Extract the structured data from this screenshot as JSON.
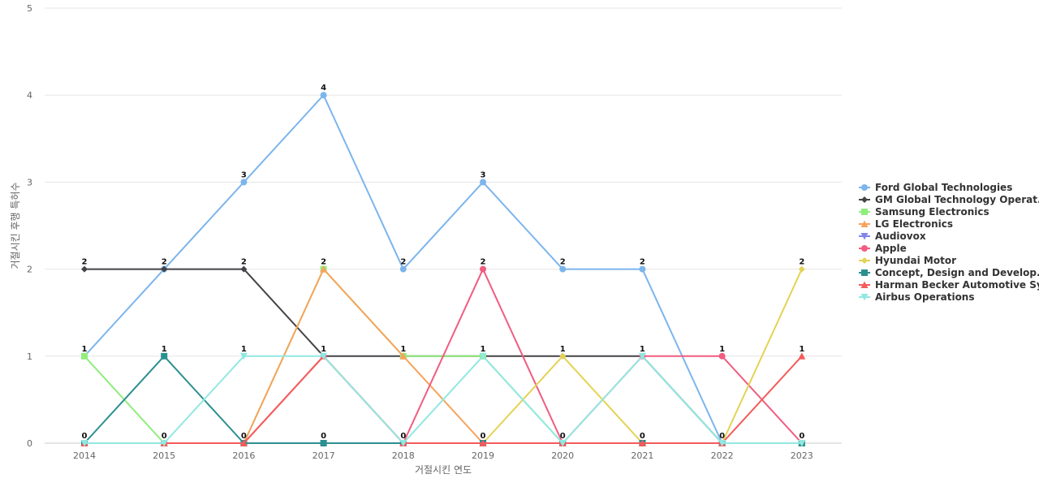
{
  "chart_data": {
    "type": "line",
    "title": "",
    "xlabel": "거절시킨 연도",
    "ylabel": "거절시킨 후행 특허수",
    "categories": [
      "2014",
      "2015",
      "2016",
      "2017",
      "2018",
      "2019",
      "2020",
      "2021",
      "2022",
      "2023"
    ],
    "ylim": [
      0,
      5
    ],
    "yticks": [
      0,
      1,
      2,
      3,
      4,
      5
    ],
    "grid": true,
    "legend_position": "right",
    "series": [
      {
        "name": "Ford Global Technologies",
        "color": "#7cb5ec",
        "marker": "circle",
        "values": [
          1,
          2,
          3,
          4,
          2,
          3,
          2,
          2,
          0,
          0
        ]
      },
      {
        "name": "GM Global Technology Operat...",
        "color": "#434348",
        "marker": "diamond",
        "values": [
          2,
          2,
          2,
          1,
          1,
          1,
          1,
          1,
          0,
          0
        ]
      },
      {
        "name": "Samsung Electronics",
        "color": "#90ed7d",
        "marker": "square",
        "values": [
          1,
          0,
          0,
          2,
          1,
          1,
          0,
          0,
          0,
          0
        ]
      },
      {
        "name": "LG Electronics",
        "color": "#f7a35c",
        "marker": "triangle",
        "values": [
          0,
          0,
          0,
          2,
          1,
          0,
          0,
          0,
          0,
          0
        ]
      },
      {
        "name": "Audiovox",
        "color": "#8085e9",
        "marker": "triangle-down",
        "values": [
          0,
          0,
          0,
          0,
          0,
          0,
          0,
          0,
          0,
          0
        ]
      },
      {
        "name": "Apple",
        "color": "#f15c80",
        "marker": "circle",
        "values": [
          0,
          0,
          0,
          1,
          0,
          2,
          0,
          1,
          1,
          0
        ]
      },
      {
        "name": "Hyundai Motor",
        "color": "#e4d354",
        "marker": "diamond",
        "values": [
          0,
          0,
          0,
          0,
          0,
          0,
          1,
          0,
          0,
          2
        ]
      },
      {
        "name": "Concept, Design and Develop...",
        "color": "#2b908f",
        "marker": "square",
        "values": [
          0,
          1,
          0,
          0,
          0,
          0,
          0,
          0,
          0,
          0
        ]
      },
      {
        "name": "Harman Becker Automotive Sy...",
        "color": "#f45b5b",
        "marker": "triangle",
        "values": [
          0,
          0,
          0,
          1,
          0,
          0,
          0,
          0,
          0,
          1
        ]
      },
      {
        "name": "Airbus Operations",
        "color": "#91e8e1",
        "marker": "triangle-down",
        "values": [
          0,
          0,
          1,
          1,
          0,
          1,
          0,
          1,
          0,
          0
        ]
      }
    ],
    "data_labels": [
      {
        "category": "2014",
        "value": 2,
        "text": "2"
      },
      {
        "category": "2014",
        "value": 1,
        "text": "1"
      },
      {
        "category": "2014",
        "value": 0,
        "text": "0"
      },
      {
        "category": "2015",
        "value": 2,
        "text": "2"
      },
      {
        "category": "2015",
        "value": 1,
        "text": "1"
      },
      {
        "category": "2015",
        "value": 0,
        "text": "0"
      },
      {
        "category": "2016",
        "value": 3,
        "text": "3"
      },
      {
        "category": "2016",
        "value": 2,
        "text": "2"
      },
      {
        "category": "2016",
        "value": 1,
        "text": "1"
      },
      {
        "category": "2016",
        "value": 0,
        "text": "0"
      },
      {
        "category": "2017",
        "value": 4,
        "text": "4"
      },
      {
        "category": "2017",
        "value": 2,
        "text": "2"
      },
      {
        "category": "2017",
        "value": 1,
        "text": "1"
      },
      {
        "category": "2017",
        "value": 0,
        "text": "0"
      },
      {
        "category": "2018",
        "value": 2,
        "text": "2"
      },
      {
        "category": "2018",
        "value": 1,
        "text": "1"
      },
      {
        "category": "2018",
        "value": 0,
        "text": "0"
      },
      {
        "category": "2019",
        "value": 3,
        "text": "3"
      },
      {
        "category": "2019",
        "value": 2,
        "text": "2"
      },
      {
        "category": "2019",
        "value": 1,
        "text": "1"
      },
      {
        "category": "2019",
        "value": 0,
        "text": "0"
      },
      {
        "category": "2020",
        "value": 2,
        "text": "2"
      },
      {
        "category": "2020",
        "value": 1,
        "text": "1"
      },
      {
        "category": "2020",
        "value": 0,
        "text": "0"
      },
      {
        "category": "2021",
        "value": 2,
        "text": "2"
      },
      {
        "category": "2021",
        "value": 1,
        "text": "1"
      },
      {
        "category": "2021",
        "value": 0,
        "text": "0"
      },
      {
        "category": "2022",
        "value": 1,
        "text": "1"
      },
      {
        "category": "2022",
        "value": 0,
        "text": "0"
      },
      {
        "category": "2023",
        "value": 2,
        "text": "2"
      },
      {
        "category": "2023",
        "value": 1,
        "text": "1"
      },
      {
        "category": "2023",
        "value": 0,
        "text": "0"
      }
    ]
  }
}
